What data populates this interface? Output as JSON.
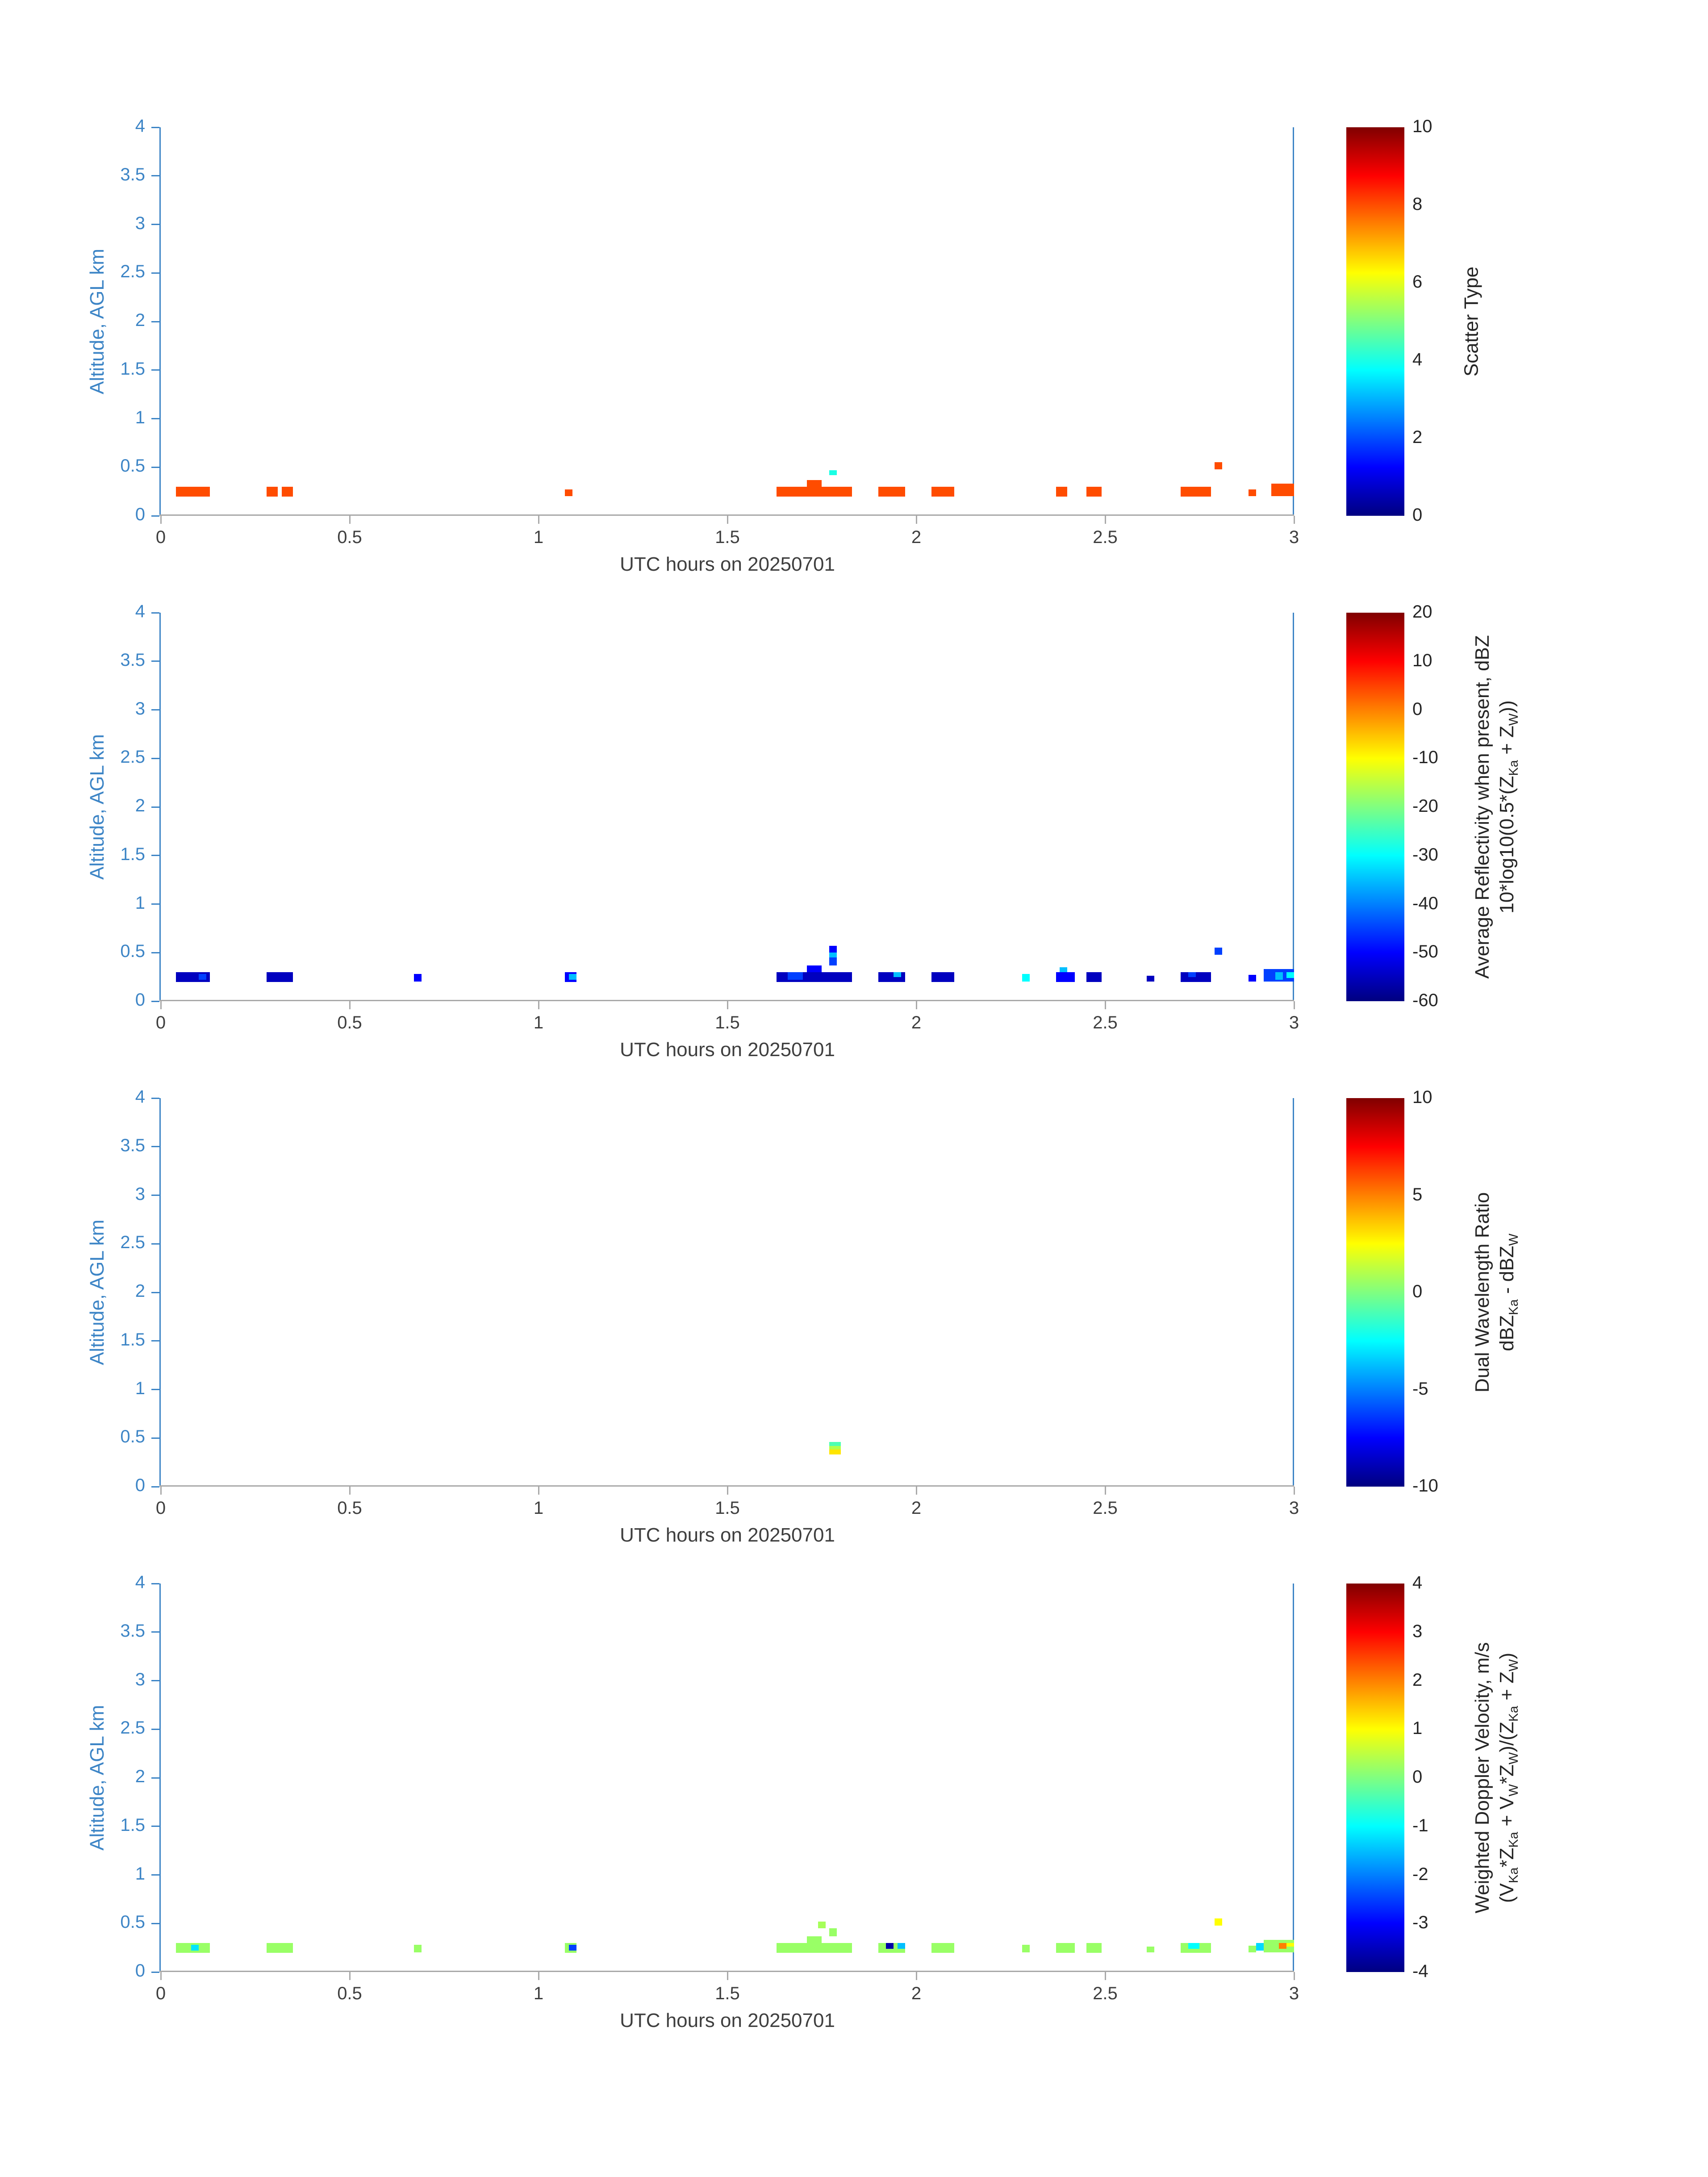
{
  "colors": {
    "y_axis": "#3d85c6",
    "x_label": "#3f3f3f",
    "x_spine": "#a9a9a9",
    "cb_tick_label": "#262626",
    "background": "#ffffff"
  },
  "chart_data": [
    {
      "type": "heatmap",
      "id": "scatter-type",
      "xlabel": "UTC hours on 20250701",
      "ylabel": "Altitude, AGL km",
      "xlim": [
        0,
        3
      ],
      "ylim": [
        0,
        4
      ],
      "xticks": [
        0,
        0.5,
        1,
        1.5,
        2,
        2.5,
        3
      ],
      "yticks": [
        0,
        0.5,
        1,
        1.5,
        2,
        2.5,
        3,
        3.5,
        4
      ],
      "colorbar": {
        "min": 0,
        "max": 10,
        "ticks": [
          0,
          2,
          4,
          6,
          8,
          10
        ],
        "label_lines": [
          "Scatter Type"
        ]
      },
      "cell_fields": [
        "x0_hr",
        "x1_hr",
        "y0_km",
        "y1_km",
        "value"
      ],
      "cells": [
        [
          0.04,
          0.13,
          0.2,
          0.3,
          8
        ],
        [
          0.28,
          0.31,
          0.2,
          0.3,
          8
        ],
        [
          0.32,
          0.35,
          0.2,
          0.3,
          8
        ],
        [
          1.07,
          1.09,
          0.2,
          0.27,
          8
        ],
        [
          1.63,
          1.83,
          0.2,
          0.3,
          8
        ],
        [
          1.71,
          1.75,
          0.3,
          0.37,
          8
        ],
        [
          1.77,
          1.79,
          0.42,
          0.47,
          4
        ],
        [
          1.9,
          1.97,
          0.2,
          0.3,
          8
        ],
        [
          2.04,
          2.1,
          0.2,
          0.3,
          8
        ],
        [
          2.37,
          2.4,
          0.2,
          0.3,
          8
        ],
        [
          2.45,
          2.49,
          0.2,
          0.3,
          8
        ],
        [
          2.7,
          2.78,
          0.2,
          0.3,
          8
        ],
        [
          2.79,
          2.81,
          0.48,
          0.55,
          8
        ],
        [
          2.88,
          2.9,
          0.2,
          0.27,
          8
        ],
        [
          2.94,
          3.0,
          0.2,
          0.33,
          8
        ]
      ]
    },
    {
      "type": "heatmap",
      "id": "average-reflectivity",
      "xlabel": "UTC hours on 20250701",
      "ylabel": "Altitude, AGL km",
      "xlim": [
        0,
        3
      ],
      "ylim": [
        0,
        4
      ],
      "xticks": [
        0,
        0.5,
        1,
        1.5,
        2,
        2.5,
        3
      ],
      "yticks": [
        0,
        0.5,
        1,
        1.5,
        2,
        2.5,
        3,
        3.5,
        4
      ],
      "colorbar": {
        "min": -60,
        "max": 20,
        "ticks": [
          -60,
          -50,
          -40,
          -30,
          -20,
          -10,
          0,
          10,
          20
        ],
        "label_lines": [
          "Average Reflectivity when present, dBZ",
          "10*log10(0.5*(Z_{Ka} + Z_{W}))"
        ]
      },
      "cell_fields": [
        "x0_hr",
        "x1_hr",
        "y0_km",
        "y1_km",
        "value"
      ],
      "cells": [
        [
          0.04,
          0.13,
          0.2,
          0.3,
          -55
        ],
        [
          0.1,
          0.12,
          0.22,
          0.28,
          -45
        ],
        [
          0.28,
          0.35,
          0.2,
          0.3,
          -55
        ],
        [
          0.67,
          0.69,
          0.2,
          0.28,
          -50
        ],
        [
          1.07,
          1.1,
          0.2,
          0.3,
          -50
        ],
        [
          1.08,
          1.1,
          0.22,
          0.28,
          -35
        ],
        [
          1.63,
          1.83,
          0.2,
          0.3,
          -55
        ],
        [
          1.66,
          1.7,
          0.22,
          0.3,
          -45
        ],
        [
          1.71,
          1.75,
          0.3,
          0.37,
          -50
        ],
        [
          1.77,
          1.79,
          0.37,
          0.45,
          -45
        ],
        [
          1.77,
          1.79,
          0.45,
          0.5,
          -35
        ],
        [
          1.77,
          1.79,
          0.5,
          0.57,
          -50
        ],
        [
          1.9,
          1.97,
          0.2,
          0.3,
          -55
        ],
        [
          1.94,
          1.96,
          0.25,
          0.3,
          -35
        ],
        [
          2.04,
          2.1,
          0.2,
          0.3,
          -55
        ],
        [
          2.28,
          2.3,
          0.2,
          0.28,
          -30
        ],
        [
          2.37,
          2.42,
          0.2,
          0.3,
          -50
        ],
        [
          2.38,
          2.4,
          0.3,
          0.35,
          -35
        ],
        [
          2.45,
          2.49,
          0.2,
          0.3,
          -55
        ],
        [
          2.61,
          2.63,
          0.2,
          0.26,
          -55
        ],
        [
          2.7,
          2.78,
          0.2,
          0.3,
          -55
        ],
        [
          2.72,
          2.74,
          0.25,
          0.3,
          -45
        ],
        [
          2.79,
          2.81,
          0.48,
          0.55,
          -45
        ],
        [
          2.88,
          2.9,
          0.2,
          0.27,
          -50
        ],
        [
          2.92,
          3.0,
          0.2,
          0.33,
          -45
        ],
        [
          2.95,
          2.97,
          0.22,
          0.3,
          -35
        ],
        [
          2.98,
          3.0,
          0.24,
          0.3,
          -30
        ]
      ]
    },
    {
      "type": "heatmap",
      "id": "dual-wavelength-ratio",
      "xlabel": "UTC hours on 20250701",
      "ylabel": "Altitude, AGL km",
      "xlim": [
        0,
        3
      ],
      "ylim": [
        0,
        4
      ],
      "xticks": [
        0,
        0.5,
        1,
        1.5,
        2,
        2.5,
        3
      ],
      "yticks": [
        0,
        0.5,
        1,
        1.5,
        2,
        2.5,
        3,
        3.5,
        4
      ],
      "colorbar": {
        "min": -10,
        "max": 10,
        "ticks": [
          -10,
          -5,
          0,
          5,
          10
        ],
        "label_lines": [
          "Dual Wavelength Ratio",
          "dBZ_{Ka} - dBZ_{W}"
        ]
      },
      "cell_fields": [
        "x0_hr",
        "x1_hr",
        "y0_km",
        "y1_km",
        "value"
      ],
      "cells": [
        [
          1.77,
          1.8,
          0.33,
          0.38,
          3
        ],
        [
          1.77,
          1.8,
          0.38,
          0.42,
          1
        ],
        [
          1.77,
          1.8,
          0.42,
          0.46,
          -1
        ]
      ]
    },
    {
      "type": "heatmap",
      "id": "weighted-doppler-velocity",
      "xlabel": "UTC hours on 20250701",
      "ylabel": "Altitude, AGL km",
      "xlim": [
        0,
        3
      ],
      "ylim": [
        0,
        4
      ],
      "xticks": [
        0,
        0.5,
        1,
        1.5,
        2,
        2.5,
        3
      ],
      "yticks": [
        0,
        0.5,
        1,
        1.5,
        2,
        2.5,
        3,
        3.5,
        4
      ],
      "colorbar": {
        "min": -4,
        "max": 4,
        "ticks": [
          -4,
          -3,
          -2,
          -1,
          0,
          1,
          2,
          3,
          4
        ],
        "label_lines": [
          "Weighted Doppler Velocity, m/s",
          "(V_{Ka}*Z_{Ka} + V_{W}*Z_{W})/(Z_{Ka} + Z_{W})"
        ]
      },
      "cell_fields": [
        "x0_hr",
        "x1_hr",
        "y0_km",
        "y1_km",
        "value"
      ],
      "cells": [
        [
          0.04,
          0.13,
          0.2,
          0.3,
          0.2
        ],
        [
          0.08,
          0.1,
          0.22,
          0.28,
          -1.2
        ],
        [
          0.28,
          0.35,
          0.2,
          0.3,
          0.2
        ],
        [
          0.67,
          0.69,
          0.2,
          0.28,
          0.2
        ],
        [
          1.07,
          1.1,
          0.2,
          0.3,
          0.2
        ],
        [
          1.08,
          1.1,
          0.22,
          0.28,
          -2.5
        ],
        [
          1.63,
          1.83,
          0.2,
          0.3,
          0.2
        ],
        [
          1.71,
          1.75,
          0.3,
          0.37,
          0.2
        ],
        [
          1.74,
          1.76,
          0.45,
          0.52,
          0.3
        ],
        [
          1.77,
          1.79,
          0.37,
          0.45,
          0.2
        ],
        [
          1.9,
          1.97,
          0.2,
          0.3,
          0.2
        ],
        [
          1.92,
          1.94,
          0.24,
          0.3,
          -3.7
        ],
        [
          1.95,
          1.97,
          0.24,
          0.3,
          -1.5
        ],
        [
          2.04,
          2.1,
          0.2,
          0.3,
          0.2
        ],
        [
          2.28,
          2.3,
          0.2,
          0.28,
          0.2
        ],
        [
          2.37,
          2.42,
          0.2,
          0.3,
          0.2
        ],
        [
          2.45,
          2.49,
          0.2,
          0.3,
          0.2
        ],
        [
          2.61,
          2.63,
          0.2,
          0.26,
          0.2
        ],
        [
          2.7,
          2.78,
          0.2,
          0.3,
          0.2
        ],
        [
          2.72,
          2.75,
          0.24,
          0.3,
          -1.0
        ],
        [
          2.79,
          2.81,
          0.48,
          0.55,
          1.0
        ],
        [
          2.88,
          2.9,
          0.2,
          0.27,
          0.2
        ],
        [
          2.9,
          2.93,
          0.22,
          0.3,
          -1.3
        ],
        [
          2.92,
          3.0,
          0.2,
          0.33,
          0.2
        ],
        [
          2.96,
          2.98,
          0.24,
          0.3,
          2.0
        ],
        [
          2.98,
          3.0,
          0.26,
          0.3,
          1.0
        ]
      ]
    }
  ]
}
